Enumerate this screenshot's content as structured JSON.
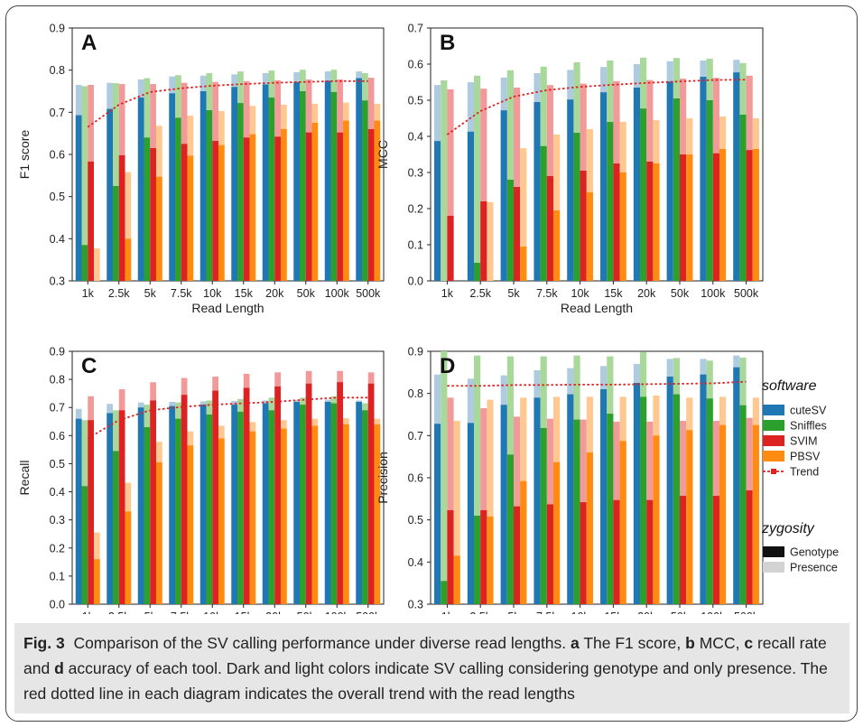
{
  "categories": [
    "1k",
    "2.5k",
    "5k",
    "7.5k",
    "10k",
    "15k",
    "20k",
    "50k",
    "100k",
    "500k"
  ],
  "legend": {
    "software_title": "software",
    "software": [
      {
        "name": "cuteSV",
        "dark": "#1f77b4",
        "light": "#aecbe0"
      },
      {
        "name": "Sniffles",
        "dark": "#2ca02c",
        "light": "#a8d89a"
      },
      {
        "name": "SVIM",
        "dark": "#dd2222",
        "light": "#f29a9a"
      },
      {
        "name": "PBSV",
        "dark": "#ff8c10",
        "light": "#ffc890"
      },
      {
        "name": "Trend",
        "dark": "#dd2222",
        "light": "#dd2222"
      }
    ],
    "zygosity_title": "zygosity",
    "zygosity": [
      {
        "name": "Genotype",
        "color": "#111111"
      },
      {
        "name": "Presence",
        "color": "#d3d3d3"
      }
    ]
  },
  "caption": {
    "fig": "Fig. 3",
    "t1": "Comparison of the SV calling performance under diverse read lengths.",
    "a": "a",
    "t2": "The F1 score,",
    "b": "b",
    "t3": "MCC,",
    "c": "c",
    "t4": "recall rate and",
    "d": "d",
    "t5": "accuracy of each tool. Dark and light colors indicate SV calling considering genotype and only presence. The red dotted line in each diagram indicates the overall trend with the read lengths"
  },
  "chart_data": [
    {
      "panel": "A",
      "type": "bar",
      "xlabel": "Read Length",
      "ylabel": "F1 score",
      "ylim": [
        0.3,
        0.9
      ],
      "yticks": [
        "0.3",
        "0.4",
        "0.5",
        "0.6",
        "0.7",
        "0.8",
        "0.9"
      ],
      "series": [
        {
          "name": "cuteSV",
          "genotype": [
            0.693,
            0.708,
            0.735,
            0.745,
            0.75,
            0.76,
            0.766,
            0.772,
            0.775,
            0.781
          ],
          "presence": [
            0.765,
            0.77,
            0.778,
            0.785,
            0.787,
            0.79,
            0.793,
            0.795,
            0.797,
            0.797
          ]
        },
        {
          "name": "Sniffles",
          "genotype": [
            0.385,
            0.525,
            0.64,
            0.687,
            0.705,
            0.722,
            0.735,
            0.75,
            0.748,
            0.728
          ],
          "presence": [
            0.762,
            0.769,
            0.781,
            0.788,
            0.793,
            0.797,
            0.799,
            0.801,
            0.801,
            0.793
          ]
        },
        {
          "name": "SVIM",
          "genotype": [
            0.583,
            0.598,
            0.615,
            0.625,
            0.632,
            0.64,
            0.642,
            0.652,
            0.652,
            0.66
          ],
          "presence": [
            0.765,
            0.767,
            0.767,
            0.77,
            0.772,
            0.774,
            0.776,
            0.778,
            0.778,
            0.782
          ]
        },
        {
          "name": "PBSV",
          "genotype": [
            0.3,
            0.4,
            0.547,
            0.597,
            0.622,
            0.648,
            0.66,
            0.675,
            0.68,
            0.68
          ],
          "presence": [
            0.377,
            0.558,
            0.668,
            0.692,
            0.703,
            0.715,
            0.718,
            0.72,
            0.723,
            0.72
          ]
        }
      ],
      "trend": [
        0.665,
        0.718,
        0.748,
        0.757,
        0.763,
        0.767,
        0.77,
        0.772,
        0.774,
        0.774
      ]
    },
    {
      "panel": "B",
      "type": "bar",
      "xlabel": "Read Length",
      "ylabel": "MCC",
      "ylim": [
        0.0,
        0.7
      ],
      "yticks": [
        "0.0",
        "0.1",
        "0.2",
        "0.3",
        "0.4",
        "0.5",
        "0.6",
        "0.7"
      ],
      "series": [
        {
          "name": "cuteSV",
          "genotype": [
            0.387,
            0.413,
            0.472,
            0.495,
            0.502,
            0.522,
            0.535,
            0.552,
            0.565,
            0.577
          ],
          "presence": [
            0.542,
            0.55,
            0.563,
            0.575,
            0.584,
            0.592,
            0.6,
            0.608,
            0.61,
            0.612
          ]
        },
        {
          "name": "Sniffles",
          "genotype": [
            0.0,
            0.05,
            0.28,
            0.373,
            0.41,
            0.44,
            0.477,
            0.505,
            0.5,
            0.46
          ],
          "presence": [
            0.555,
            0.568,
            0.583,
            0.593,
            0.605,
            0.61,
            0.618,
            0.617,
            0.615,
            0.603
          ]
        },
        {
          "name": "SVIM",
          "genotype": [
            0.18,
            0.22,
            0.26,
            0.29,
            0.305,
            0.325,
            0.33,
            0.35,
            0.353,
            0.362
          ],
          "presence": [
            0.53,
            0.532,
            0.535,
            0.542,
            0.546,
            0.553,
            0.556,
            0.56,
            0.562,
            0.568
          ]
        },
        {
          "name": "PBSV",
          "genotype": [
            0.0,
            0.0,
            0.095,
            0.195,
            0.245,
            0.3,
            0.325,
            0.35,
            0.365,
            0.365
          ],
          "presence": [
            0.0,
            0.218,
            0.367,
            0.405,
            0.42,
            0.44,
            0.445,
            0.45,
            0.455,
            0.45
          ]
        }
      ],
      "trend": [
        0.405,
        0.47,
        0.51,
        0.528,
        0.537,
        0.543,
        0.548,
        0.552,
        0.556,
        0.557
      ]
    },
    {
      "panel": "C",
      "type": "bar",
      "xlabel": "",
      "ylabel": "Recall",
      "ylim": [
        0.0,
        0.9
      ],
      "yticks": [
        "0.0",
        "0.1",
        "0.2",
        "0.3",
        "0.4",
        "0.5",
        "0.6",
        "0.7",
        "0.8",
        "0.9"
      ],
      "series": [
        {
          "name": "cuteSV",
          "genotype": [
            0.66,
            0.68,
            0.7,
            0.705,
            0.71,
            0.71,
            0.715,
            0.72,
            0.72,
            0.72
          ],
          "presence": [
            0.695,
            0.713,
            0.718,
            0.72,
            0.722,
            0.723,
            0.725,
            0.726,
            0.728,
            0.725
          ]
        },
        {
          "name": "Sniffles",
          "genotype": [
            0.42,
            0.545,
            0.63,
            0.66,
            0.675,
            0.685,
            0.69,
            0.71,
            0.715,
            0.69
          ],
          "presence": [
            0.655,
            0.69,
            0.71,
            0.718,
            0.725,
            0.73,
            0.735,
            0.735,
            0.74,
            0.715
          ]
        },
        {
          "name": "SVIM",
          "genotype": [
            0.655,
            0.69,
            0.725,
            0.745,
            0.76,
            0.77,
            0.775,
            0.785,
            0.79,
            0.785
          ],
          "presence": [
            0.74,
            0.765,
            0.79,
            0.805,
            0.81,
            0.82,
            0.825,
            0.83,
            0.83,
            0.825
          ]
        },
        {
          "name": "PBSV",
          "genotype": [
            0.16,
            0.33,
            0.505,
            0.565,
            0.59,
            0.615,
            0.625,
            0.635,
            0.64,
            0.64
          ],
          "presence": [
            0.255,
            0.432,
            0.578,
            0.615,
            0.635,
            0.648,
            0.655,
            0.66,
            0.662,
            0.66
          ]
        }
      ],
      "trend": [
        0.59,
        0.655,
        0.69,
        0.702,
        0.71,
        0.715,
        0.72,
        0.728,
        0.735,
        0.735
      ]
    },
    {
      "panel": "D",
      "type": "bar",
      "xlabel": "Read Length",
      "ylabel": "Precision",
      "ylim": [
        0.3,
        0.9
      ],
      "yticks": [
        "0.3",
        "0.4",
        "0.5",
        "0.6",
        "0.7",
        "0.8",
        "0.9"
      ],
      "series": [
        {
          "name": "cuteSV",
          "genotype": [
            0.728,
            0.73,
            0.773,
            0.79,
            0.798,
            0.81,
            0.825,
            0.84,
            0.845,
            0.862
          ],
          "presence": [
            0.845,
            0.835,
            0.843,
            0.855,
            0.86,
            0.865,
            0.87,
            0.882,
            0.882,
            0.89
          ]
        },
        {
          "name": "Sniffles",
          "genotype": [
            0.355,
            0.51,
            0.655,
            0.718,
            0.738,
            0.752,
            0.792,
            0.798,
            0.788,
            0.772
          ],
          "presence": [
            0.9,
            0.89,
            0.888,
            0.888,
            0.89,
            0.888,
            0.898,
            0.884,
            0.878,
            0.885
          ]
        },
        {
          "name": "SVIM",
          "genotype": [
            0.523,
            0.523,
            0.532,
            0.537,
            0.542,
            0.547,
            0.547,
            0.557,
            0.557,
            0.57
          ],
          "presence": [
            0.79,
            0.765,
            0.745,
            0.74,
            0.738,
            0.733,
            0.733,
            0.735,
            0.735,
            0.742
          ]
        },
        {
          "name": "PBSV",
          "genotype": [
            0.415,
            0.508,
            0.592,
            0.637,
            0.66,
            0.687,
            0.7,
            0.713,
            0.725,
            0.725
          ],
          "presence": [
            0.735,
            0.785,
            0.79,
            0.792,
            0.792,
            0.792,
            0.795,
            0.79,
            0.792,
            0.79
          ]
        }
      ],
      "trend": [
        0.818,
        0.818,
        0.82,
        0.82,
        0.821,
        0.821,
        0.822,
        0.823,
        0.824,
        0.828
      ]
    }
  ]
}
